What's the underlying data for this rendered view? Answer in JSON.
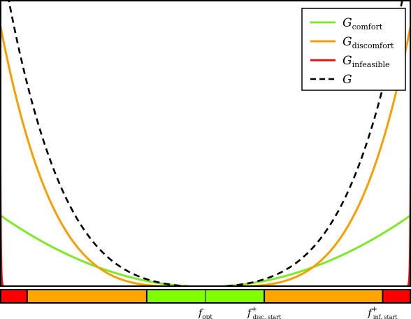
{
  "chart_data": {
    "type": "line",
    "title": "",
    "xlabel": "",
    "ylabel": "",
    "xlim": [
      -1.0,
      1.0
    ],
    "ylim": [
      0,
      1.2
    ],
    "grid": false,
    "legend_position": "top-right",
    "series": [
      {
        "key": "comfort",
        "name": "G_comfort",
        "color": "#7fe82a",
        "style": "solid",
        "params": {
          "a": 0.3,
          "p": 2
        }
      },
      {
        "key": "discomfort",
        "name": "G_discomfort",
        "color": "#f5a000",
        "style": "solid",
        "params": {
          "a": 1.1,
          "p": 4
        }
      },
      {
        "key": "infeasible",
        "name": "G_infeasible",
        "color": "#ee1111",
        "style": "solid",
        "params": {
          "a": 1.0,
          "p": 400
        }
      },
      {
        "key": "total",
        "name": "G",
        "color": "#000000",
        "style": "dashed",
        "params": {}
      }
    ],
    "legend": [
      {
        "series": "comfort",
        "base": "G",
        "sub": "comfort"
      },
      {
        "series": "discomfort",
        "base": "G",
        "sub": "discomfort"
      },
      {
        "series": "infeasible",
        "base": "G",
        "sub": "infeasible"
      },
      {
        "series": "total",
        "base": "G",
        "sub": ""
      }
    ],
    "band": [
      {
        "zone": "infeasible",
        "from": -1.0,
        "to": -0.868,
        "color": "#ff0000"
      },
      {
        "zone": "discomfort",
        "from": -0.868,
        "to": -0.286,
        "color": "#ffa500"
      },
      {
        "zone": "comfort",
        "from": -0.286,
        "to": 0.286,
        "color": "#80ff00"
      },
      {
        "zone": "discomfort",
        "from": 0.286,
        "to": 0.862,
        "color": "#ffa500"
      },
      {
        "zone": "infeasible",
        "from": 0.862,
        "to": 1.0,
        "color": "#ff0000"
      }
    ],
    "ticks": [
      {
        "x": 0.0,
        "base": "f",
        "sub": "opt",
        "sup": ""
      },
      {
        "x": 0.286,
        "base": "f",
        "sub": "disc. start",
        "sup": "+"
      },
      {
        "x": 0.862,
        "base": "f",
        "sub": "inf. start",
        "sup": "+"
      }
    ]
  }
}
